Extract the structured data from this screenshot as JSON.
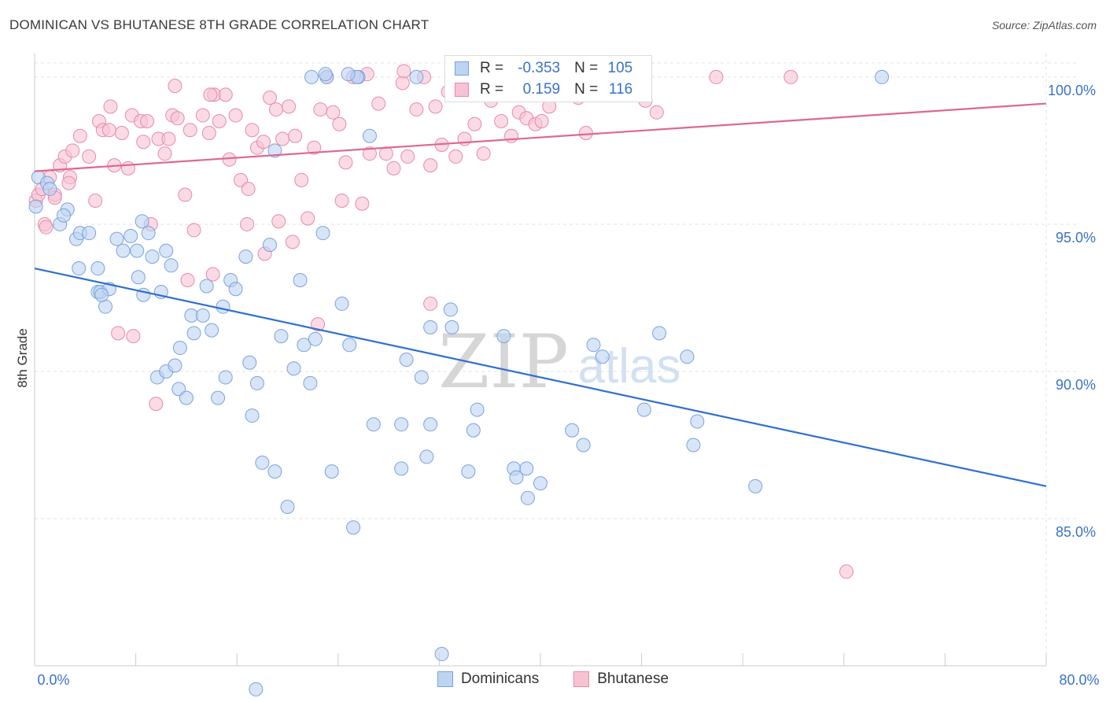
{
  "header": {
    "title": "DOMINICAN VS BHUTANESE 8TH GRADE CORRELATION CHART",
    "source": "Source: ZipAtlas.com"
  },
  "stats": [
    {
      "swatch_fill": "#bdd4f2",
      "swatch_stroke": "#7aa3de",
      "r_label": "R =",
      "r_value": "-0.353",
      "n_label": "N =",
      "n_value": "105"
    },
    {
      "swatch_fill": "#f7c3d3",
      "swatch_stroke": "#e88aa8",
      "r_label": "R =",
      "r_value": "0.159",
      "n_label": "N =",
      "n_value": "116"
    }
  ],
  "legend": [
    {
      "label": "Dominicans",
      "fill": "#bdd4f2",
      "stroke": "#7aa3de"
    },
    {
      "label": "Bhutanese",
      "fill": "#f7c3d3",
      "stroke": "#e88aa8"
    }
  ],
  "watermark": {
    "zip": "ZIP",
    "atlas": "atlas"
  },
  "chart_data": {
    "type": "scatter",
    "title": "DOMINICAN VS BHUTANESE 8TH GRADE CORRELATION CHART",
    "xlabel": "",
    "ylabel": "8th Grade",
    "xlim": [
      0,
      80
    ],
    "ylim": [
      80,
      100.8
    ],
    "x_tick_labels": [
      "0.0%",
      "80.0%"
    ],
    "y_ticks": [
      85,
      90,
      95,
      100
    ],
    "y_tick_labels": [
      "85.0%",
      "90.0%",
      "95.0%",
      "100.0%"
    ],
    "grid": true,
    "colors": {
      "blue_line": "#2f6fd1",
      "pink_line": "#e06694",
      "tick_label": "#3a72c8",
      "axis": "#cccccc",
      "grid": "#e2e2e2"
    },
    "series": [
      {
        "name": "Dominicans",
        "fill": "#bdd4f2",
        "stroke": "#7aa3de",
        "trend": {
          "x0": 0,
          "y0": 93.5,
          "x1": 80,
          "y1": 86.1
        },
        "points": [
          [
            0.1,
            95.6
          ],
          [
            0.3,
            96.6
          ],
          [
            1.0,
            96.4
          ],
          [
            1.2,
            96.2
          ],
          [
            2.0,
            95.0
          ],
          [
            2.6,
            95.5
          ],
          [
            2.3,
            95.3
          ],
          [
            3.3,
            94.5
          ],
          [
            3.6,
            94.7
          ],
          [
            4.3,
            94.7
          ],
          [
            3.5,
            93.5
          ],
          [
            5.0,
            93.5
          ],
          [
            5.0,
            92.7
          ],
          [
            5.2,
            92.7
          ],
          [
            5.9,
            92.8
          ],
          [
            5.6,
            92.2
          ],
          [
            5.3,
            92.6
          ],
          [
            6.5,
            94.5
          ],
          [
            7.0,
            94.1
          ],
          [
            7.6,
            94.6
          ],
          [
            8.1,
            94.1
          ],
          [
            8.2,
            93.2
          ],
          [
            8.6,
            92.6
          ],
          [
            8.5,
            95.1
          ],
          [
            9.0,
            94.7
          ],
          [
            9.3,
            93.9
          ],
          [
            10.0,
            92.7
          ],
          [
            10.4,
            94.1
          ],
          [
            10.8,
            93.6
          ],
          [
            9.7,
            89.8
          ],
          [
            10.4,
            90.0
          ],
          [
            11.1,
            90.2
          ],
          [
            11.4,
            89.4
          ],
          [
            11.5,
            90.8
          ],
          [
            12.4,
            91.9
          ],
          [
            12.6,
            91.3
          ],
          [
            12.0,
            89.1
          ],
          [
            13.3,
            91.9
          ],
          [
            13.6,
            92.9
          ],
          [
            14.0,
            91.4
          ],
          [
            14.5,
            89.1
          ],
          [
            14.9,
            92.2
          ],
          [
            15.1,
            89.8
          ],
          [
            15.5,
            93.1
          ],
          [
            15.9,
            92.8
          ],
          [
            16.7,
            93.9
          ],
          [
            17.0,
            90.3
          ],
          [
            17.2,
            88.5
          ],
          [
            17.6,
            89.6
          ],
          [
            18.0,
            86.9
          ],
          [
            18.6,
            94.3
          ],
          [
            19.0,
            86.6
          ],
          [
            19.0,
            97.5
          ],
          [
            19.5,
            91.2
          ],
          [
            20.0,
            85.4
          ],
          [
            20.5,
            90.1
          ],
          [
            21.0,
            93.1
          ],
          [
            21.3,
            90.9
          ],
          [
            21.8,
            89.6
          ],
          [
            22.2,
            91.1
          ],
          [
            22.8,
            94.7
          ],
          [
            21.9,
            100.0
          ],
          [
            23.1,
            100.0
          ],
          [
            23.5,
            86.6
          ],
          [
            24.3,
            92.3
          ],
          [
            24.9,
            90.9
          ],
          [
            25.2,
            84.7
          ],
          [
            25.6,
            100.0
          ],
          [
            26.5,
            98.0
          ],
          [
            26.8,
            88.2
          ],
          [
            29.0,
            88.2
          ],
          [
            29.4,
            90.4
          ],
          [
            29.0,
            86.7
          ],
          [
            30.6,
            89.8
          ],
          [
            31.0,
            87.1
          ],
          [
            31.3,
            88.2
          ],
          [
            31.3,
            91.5
          ],
          [
            33.0,
            91.5
          ],
          [
            32.9,
            92.1
          ],
          [
            34.3,
            86.6
          ],
          [
            34.7,
            88.0
          ],
          [
            35.0,
            88.7
          ],
          [
            37.1,
            91.2
          ],
          [
            37.9,
            86.7
          ],
          [
            38.1,
            86.4
          ],
          [
            38.9,
            86.7
          ],
          [
            39.0,
            85.7
          ],
          [
            40.0,
            86.2
          ],
          [
            42.5,
            88.0
          ],
          [
            43.4,
            87.5
          ],
          [
            44.2,
            90.9
          ],
          [
            44.9,
            90.5
          ],
          [
            48.2,
            88.7
          ],
          [
            49.4,
            91.3
          ],
          [
            51.6,
            90.5
          ],
          [
            52.1,
            87.5
          ],
          [
            52.4,
            88.3
          ],
          [
            57.0,
            86.1
          ],
          [
            67.0,
            100.0
          ],
          [
            30.2,
            100.0
          ],
          [
            17.5,
            79.2
          ],
          [
            25.5,
            100.0
          ],
          [
            32.2,
            80.4
          ],
          [
            23.0,
            100.1
          ],
          [
            24.8,
            100.1
          ]
        ]
      },
      {
        "name": "Bhutanese",
        "fill": "#f7c3d3",
        "stroke": "#e88aa8",
        "trend": {
          "x0": 0,
          "y0": 96.8,
          "x1": 80,
          "y1": 99.1
        },
        "points": [
          [
            0.1,
            95.8
          ],
          [
            0.3,
            96.0
          ],
          [
            0.6,
            96.2
          ],
          [
            0.8,
            95.0
          ],
          [
            1.2,
            96.6
          ],
          [
            1.6,
            96.0
          ],
          [
            2.0,
            97.0
          ],
          [
            2.4,
            97.3
          ],
          [
            2.8,
            96.6
          ],
          [
            3.0,
            97.5
          ],
          [
            3.6,
            98.0
          ],
          [
            4.3,
            97.3
          ],
          [
            4.8,
            95.8
          ],
          [
            5.1,
            98.5
          ],
          [
            5.4,
            98.2
          ],
          [
            5.9,
            98.2
          ],
          [
            6.0,
            99.0
          ],
          [
            6.3,
            97.0
          ],
          [
            6.9,
            98.1
          ],
          [
            7.4,
            96.9
          ],
          [
            7.7,
            98.7
          ],
          [
            8.4,
            98.5
          ],
          [
            8.6,
            97.8
          ],
          [
            8.9,
            98.5
          ],
          [
            9.2,
            95.0
          ],
          [
            9.8,
            97.9
          ],
          [
            10.3,
            97.4
          ],
          [
            10.6,
            97.9
          ],
          [
            10.9,
            98.7
          ],
          [
            11.3,
            98.6
          ],
          [
            11.9,
            96.0
          ],
          [
            12.3,
            98.2
          ],
          [
            12.6,
            94.8
          ],
          [
            13.3,
            98.7
          ],
          [
            13.8,
            98.1
          ],
          [
            14.2,
            99.4
          ],
          [
            14.6,
            98.5
          ],
          [
            15.1,
            99.4
          ],
          [
            15.4,
            97.2
          ],
          [
            15.9,
            98.7
          ],
          [
            16.3,
            96.5
          ],
          [
            16.8,
            95.0
          ],
          [
            17.2,
            98.2
          ],
          [
            17.6,
            97.6
          ],
          [
            18.1,
            97.8
          ],
          [
            18.6,
            99.3
          ],
          [
            19.1,
            98.9
          ],
          [
            19.6,
            97.9
          ],
          [
            20.1,
            99.0
          ],
          [
            20.6,
            98.0
          ],
          [
            21.1,
            96.5
          ],
          [
            21.6,
            95.2
          ],
          [
            22.1,
            97.6
          ],
          [
            22.6,
            98.9
          ],
          [
            23.1,
            100.0
          ],
          [
            23.6,
            98.8
          ],
          [
            24.1,
            98.4
          ],
          [
            24.6,
            97.1
          ],
          [
            25.2,
            100.0
          ],
          [
            25.9,
            95.7
          ],
          [
            26.5,
            97.4
          ],
          [
            27.2,
            99.1
          ],
          [
            27.8,
            97.4
          ],
          [
            28.4,
            96.9
          ],
          [
            29.1,
            99.8
          ],
          [
            29.5,
            97.3
          ],
          [
            30.2,
            98.9
          ],
          [
            30.8,
            100.0
          ],
          [
            31.3,
            97.0
          ],
          [
            31.7,
            99.0
          ],
          [
            32.2,
            97.7
          ],
          [
            32.7,
            99.5
          ],
          [
            33.3,
            97.3
          ],
          [
            34.0,
            97.9
          ],
          [
            34.8,
            98.4
          ],
          [
            35.5,
            97.4
          ],
          [
            36.1,
            99.2
          ],
          [
            36.9,
            98.5
          ],
          [
            37.3,
            99.6
          ],
          [
            37.7,
            98.0
          ],
          [
            38.3,
            98.8
          ],
          [
            38.9,
            98.6
          ],
          [
            39.6,
            98.4
          ],
          [
            40.1,
            98.5
          ],
          [
            40.7,
            99.0
          ],
          [
            41.2,
            99.8
          ],
          [
            42.0,
            99.6
          ],
          [
            43.0,
            99.3
          ],
          [
            44.3,
            99.8
          ],
          [
            45.0,
            100.0
          ],
          [
            46.0,
            99.4
          ],
          [
            47.0,
            99.6
          ],
          [
            48.3,
            99.2
          ],
          [
            49.2,
            98.8
          ],
          [
            53.9,
            100.0
          ],
          [
            59.8,
            100.0
          ],
          [
            64.2,
            83.2
          ],
          [
            16.9,
            96.2
          ],
          [
            20.4,
            94.4
          ],
          [
            22.4,
            91.6
          ],
          [
            12.1,
            93.1
          ],
          [
            9.6,
            88.9
          ],
          [
            6.6,
            91.3
          ],
          [
            7.8,
            91.2
          ],
          [
            18.2,
            94.0
          ],
          [
            14.1,
            93.3
          ],
          [
            26.3,
            100.1
          ],
          [
            29.2,
            100.2
          ],
          [
            33.1,
            100.1
          ],
          [
            19.3,
            95.1
          ],
          [
            11.1,
            99.7
          ],
          [
            13.9,
            99.4
          ],
          [
            0.9,
            94.9
          ],
          [
            1.6,
            95.9
          ],
          [
            2.7,
            96.4
          ],
          [
            31.3,
            92.3
          ],
          [
            43.6,
            98.1
          ],
          [
            24.3,
            95.8
          ]
        ]
      }
    ]
  }
}
